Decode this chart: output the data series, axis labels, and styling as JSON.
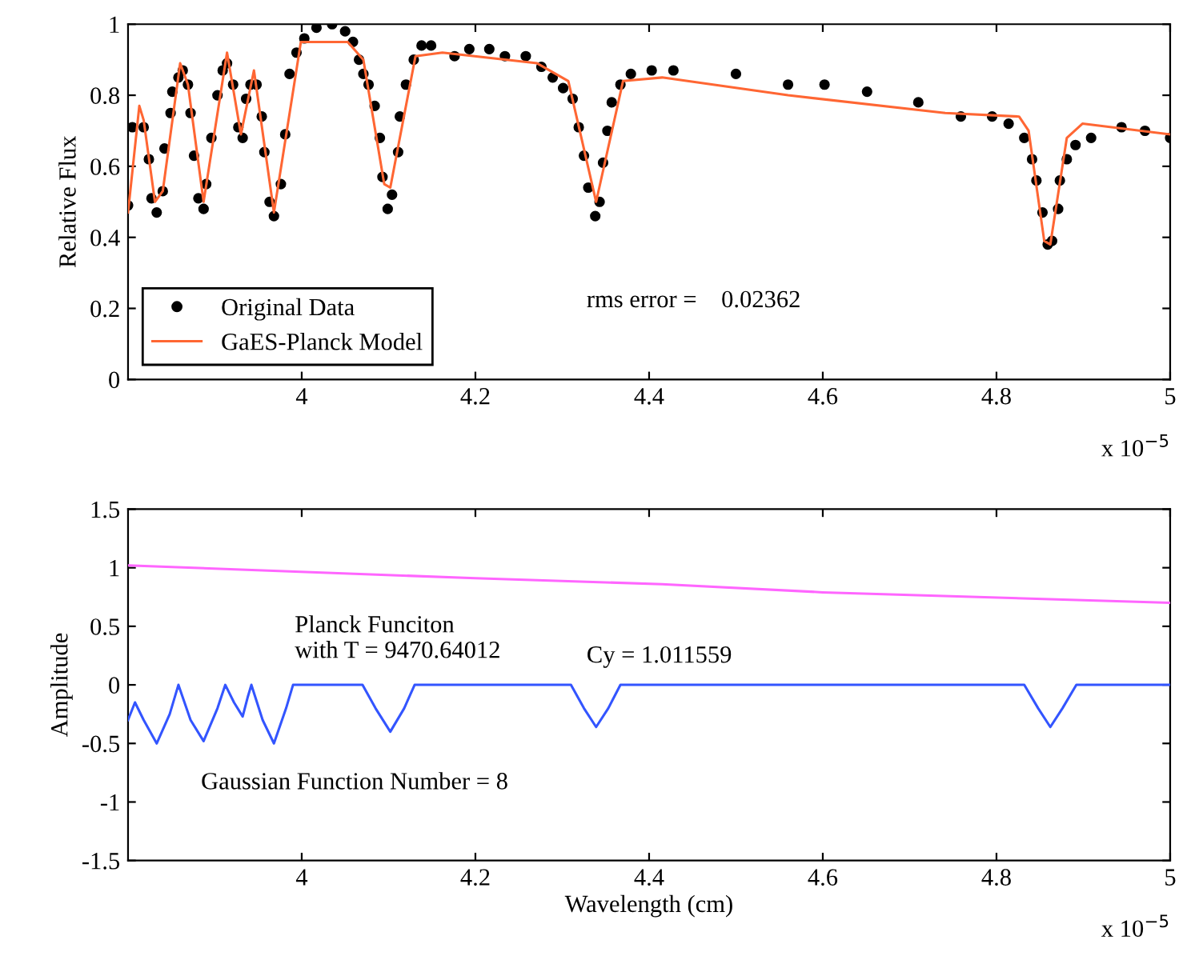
{
  "chart_data": [
    {
      "type": "scatter",
      "ylabel": "Relative Flux",
      "xlim": [
        3.8,
        5.0
      ],
      "xticks": [
        4,
        4.2,
        4.4,
        4.6,
        4.8,
        5
      ],
      "ylim": [
        0,
        1
      ],
      "yticks": [
        0,
        0.2,
        0.4,
        0.6,
        0.8,
        1
      ],
      "legend": "bottom left",
      "grid": false,
      "annotations": [
        "rms error =    0.02362",
        "x 10$^{−5}$"
      ],
      "series": [
        {
          "name": "Original Data",
          "marker": "circle",
          "color": "#000000",
          "x": [
            3.8,
            3.805,
            3.818,
            3.824,
            3.827,
            3.833,
            3.84,
            3.842,
            3.849,
            3.851,
            3.858,
            3.863,
            3.869,
            3.872,
            3.876,
            3.881,
            3.887,
            3.89,
            3.896,
            3.903,
            3.909,
            3.914,
            3.921,
            3.927,
            3.932,
            3.936,
            3.941,
            3.948,
            3.954,
            3.957,
            3.963,
            3.968,
            3.976,
            3.981,
            3.986,
            3.994,
            4.003,
            4.017,
            4.035,
            4.05,
            4.059,
            4.066,
            4.071,
            4.077,
            4.084,
            4.09,
            4.093,
            4.099,
            4.104,
            4.111,
            4.113,
            4.12,
            4.129,
            4.138,
            4.149,
            4.176,
            4.193,
            4.216,
            4.234,
            4.258,
            4.276,
            4.289,
            4.301,
            4.312,
            4.319,
            4.325,
            4.33,
            4.338,
            4.343,
            4.347,
            4.352,
            4.357,
            4.367,
            4.379,
            4.403,
            4.428,
            4.5,
            4.56,
            4.602,
            4.651,
            4.71,
            4.759,
            4.795,
            4.814,
            4.832,
            4.841,
            4.846,
            4.853,
            4.859,
            4.864,
            4.871,
            4.873,
            4.881,
            4.891,
            4.909,
            4.944,
            4.971,
            5.0
          ],
          "values": [
            0.49,
            0.71,
            0.71,
            0.62,
            0.51,
            0.47,
            0.53,
            0.65,
            0.75,
            0.81,
            0.85,
            0.87,
            0.83,
            0.75,
            0.63,
            0.51,
            0.48,
            0.55,
            0.68,
            0.8,
            0.87,
            0.89,
            0.83,
            0.71,
            0.68,
            0.79,
            0.83,
            0.83,
            0.74,
            0.64,
            0.5,
            0.46,
            0.55,
            0.69,
            0.86,
            0.92,
            0.96,
            0.99,
            1.0,
            0.98,
            0.95,
            0.9,
            0.86,
            0.83,
            0.77,
            0.68,
            0.57,
            0.48,
            0.52,
            0.64,
            0.74,
            0.83,
            0.9,
            0.94,
            0.94,
            0.91,
            0.93,
            0.93,
            0.91,
            0.91,
            0.88,
            0.85,
            0.82,
            0.79,
            0.71,
            0.63,
            0.54,
            0.46,
            0.5,
            0.61,
            0.7,
            0.78,
            0.83,
            0.86,
            0.87,
            0.87,
            0.86,
            0.83,
            0.83,
            0.81,
            0.78,
            0.74,
            0.74,
            0.72,
            0.68,
            0.62,
            0.56,
            0.47,
            0.38,
            0.39,
            0.48,
            0.56,
            0.62,
            0.66,
            0.68,
            0.71,
            0.7,
            0.68
          ]
        },
        {
          "name": "GaES-Planck Model",
          "type": "line",
          "marker": "none",
          "line_style": "solid",
          "color": "#ff6633",
          "x": [
            3.8,
            3.813,
            3.818,
            3.831,
            3.84,
            3.86,
            3.869,
            3.887,
            3.914,
            3.93,
            3.945,
            3.968,
            3.999,
            4.053,
            4.071,
            4.095,
            4.102,
            4.131,
            4.162,
            4.271,
            4.307,
            4.339,
            4.37,
            4.415,
            4.56,
            4.741,
            4.826,
            4.837,
            4.855,
            4.862,
            4.881,
            4.899,
            5.0
          ],
          "values": [
            0.47,
            0.77,
            0.73,
            0.5,
            0.53,
            0.89,
            0.83,
            0.5,
            0.92,
            0.69,
            0.87,
            0.47,
            0.95,
            0.95,
            0.9,
            0.55,
            0.54,
            0.91,
            0.92,
            0.89,
            0.84,
            0.5,
            0.84,
            0.85,
            0.8,
            0.75,
            0.74,
            0.7,
            0.39,
            0.38,
            0.68,
            0.72,
            0.69
          ]
        }
      ]
    },
    {
      "type": "line",
      "ylabel": "Amplitude",
      "xlabel": "Wavelength (cm)",
      "xlim": [
        3.8,
        5.0
      ],
      "xticks": [
        4,
        4.2,
        4.4,
        4.6,
        4.8,
        5
      ],
      "ylim": [
        -1.5,
        1.5
      ],
      "yticks": [
        -1.5,
        -1,
        -0.5,
        0,
        0.5,
        1,
        1.5
      ],
      "grid": false,
      "annotations": [
        "Planck Funciton\nwith T = 9470.64012",
        "Cy = 1.011559",
        "Gaussian Function Number = 8",
        "x 10$^{−5}$"
      ],
      "series": [
        {
          "marker": "none",
          "line_style": "solid",
          "color": "#ff66ff",
          "x": [
            3.8,
            4.2,
            4.415,
            4.6,
            5.0
          ],
          "values": [
            1.02,
            0.91,
            0.86,
            0.79,
            0.7
          ]
        },
        {
          "marker": "none",
          "line_style": "solid",
          "color": "#3355ff",
          "x": [
            3.8,
            3.808,
            3.818,
            3.833,
            3.848,
            3.858,
            3.872,
            3.887,
            3.903,
            3.912,
            3.922,
            3.932,
            3.938,
            3.942,
            3.955,
            3.968,
            3.982,
            3.99,
            4.07,
            4.085,
            4.102,
            4.118,
            4.13,
            4.31,
            4.325,
            4.339,
            4.353,
            4.367,
            4.832,
            4.848,
            4.862,
            4.876,
            4.892,
            5.0
          ],
          "values": [
            -0.3,
            -0.15,
            -0.3,
            -0.5,
            -0.25,
            0,
            -0.3,
            -0.48,
            -0.2,
            0,
            -0.15,
            -0.27,
            -0.1,
            0,
            -0.3,
            -0.5,
            -0.2,
            0,
            0,
            -0.2,
            -0.4,
            -0.2,
            0,
            0,
            -0.2,
            -0.36,
            -0.2,
            0,
            0,
            -0.2,
            -0.36,
            -0.2,
            0,
            0
          ]
        }
      ]
    }
  ]
}
